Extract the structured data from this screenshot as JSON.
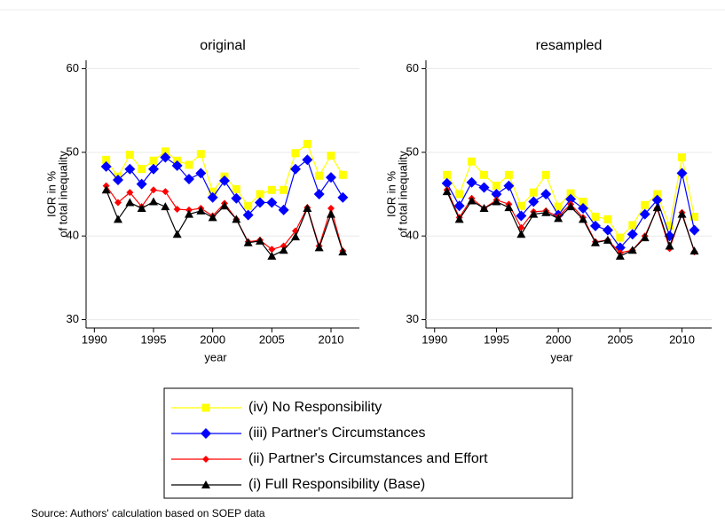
{
  "chart_data": [
    {
      "type": "line",
      "title": "original",
      "xlabel": "year",
      "ylabel": [
        "IOR in %",
        "of total inequality"
      ],
      "x": [
        1991,
        1992,
        1993,
        1994,
        1995,
        1996,
        1997,
        1998,
        1999,
        2000,
        2001,
        2002,
        2003,
        2004,
        2005,
        2006,
        2007,
        2008,
        2009,
        2010,
        2011
      ],
      "xlim": [
        1989.3,
        2012.4
      ],
      "xticks": [
        1990,
        1995,
        2000,
        2005,
        2010
      ],
      "ylim": [
        29,
        61
      ],
      "yticks": [
        30,
        40,
        50,
        60
      ],
      "grid": true,
      "series": [
        {
          "name": "(iv) No Responsibility",
          "color": "#ffff00",
          "marker": "square",
          "values": [
            49.1,
            47.1,
            49.7,
            48.0,
            49.0,
            50.1,
            49.0,
            48.5,
            49.8,
            45.3,
            47.1,
            45.6,
            43.6,
            45.0,
            45.5,
            45.5,
            49.9,
            51.0,
            47.2,
            49.6,
            47.3
          ]
        },
        {
          "name": "(iii) Partner's Circumstances",
          "color": "#0000ff",
          "marker": "diamond",
          "values": [
            48.3,
            46.7,
            48.0,
            46.2,
            48.0,
            49.4,
            48.4,
            46.8,
            47.5,
            44.6,
            46.6,
            44.5,
            42.5,
            44.0,
            44.0,
            43.1,
            48.0,
            49.1,
            45.0,
            47.0,
            44.6
          ]
        },
        {
          "name": "(ii) Partner's Circumstances and Effort",
          "color": "#ff0000",
          "marker": "small-diamond",
          "values": [
            46.0,
            44.0,
            45.2,
            43.5,
            45.5,
            45.3,
            43.2,
            43.1,
            43.3,
            42.4,
            43.9,
            42.0,
            39.3,
            39.5,
            38.4,
            38.8,
            40.6,
            43.4,
            38.8,
            43.3,
            38.2
          ]
        },
        {
          "name": "(i) Full Responsibility (Base)",
          "color": "#000000",
          "marker": "triangle",
          "values": [
            45.5,
            42.0,
            44.0,
            43.3,
            44.1,
            43.5,
            40.2,
            42.6,
            43.0,
            42.2,
            43.6,
            42.0,
            39.2,
            39.4,
            37.6,
            38.3,
            39.9,
            43.3,
            38.6,
            42.6,
            38.1
          ]
        }
      ]
    },
    {
      "type": "line",
      "title": "resampled",
      "xlabel": "year",
      "ylabel": [
        "IOR in %",
        "of total inequality"
      ],
      "x": [
        1991,
        1992,
        1993,
        1994,
        1995,
        1996,
        1997,
        1998,
        1999,
        2000,
        2001,
        2002,
        2003,
        2004,
        2005,
        2006,
        2007,
        2008,
        2009,
        2010,
        2011
      ],
      "xlim": [
        1989.3,
        2012.4
      ],
      "xticks": [
        1990,
        1995,
        2000,
        2005,
        2010
      ],
      "ylim": [
        29,
        61
      ],
      "yticks": [
        30,
        40,
        50,
        60
      ],
      "grid": true,
      "series": [
        {
          "color": "#ffff00",
          "marker": "square",
          "values": [
            47.3,
            45.0,
            48.9,
            47.3,
            46.0,
            47.3,
            43.6,
            45.2,
            47.3,
            43.5,
            45.1,
            44.1,
            42.3,
            42.0,
            39.8,
            41.3,
            43.7,
            45.0,
            41.2,
            49.4,
            42.3
          ]
        },
        {
          "color": "#0000ff",
          "marker": "diamond",
          "values": [
            46.3,
            43.6,
            46.4,
            45.8,
            45.0,
            46.0,
            42.4,
            44.1,
            45.0,
            42.5,
            44.4,
            43.3,
            41.2,
            40.7,
            38.6,
            40.2,
            42.6,
            44.3,
            40.0,
            47.5,
            40.7
          ]
        },
        {
          "color": "#ff0000",
          "marker": "small-diamond",
          "values": [
            45.5,
            42.2,
            44.5,
            43.3,
            44.3,
            43.8,
            41.0,
            42.9,
            43.0,
            42.3,
            43.8,
            42.2,
            39.3,
            39.5,
            38.0,
            38.3,
            40.0,
            43.3,
            38.5,
            42.8,
            38.1
          ]
        },
        {
          "color": "#000000",
          "marker": "triangle",
          "values": [
            45.3,
            42.0,
            44.2,
            43.3,
            44.1,
            43.4,
            40.2,
            42.6,
            42.8,
            42.1,
            43.5,
            42.0,
            39.2,
            39.5,
            37.6,
            38.3,
            39.8,
            43.4,
            38.8,
            42.6,
            38.2
          ]
        }
      ]
    }
  ],
  "source": "Source: Authors' calculation based on SOEP data"
}
